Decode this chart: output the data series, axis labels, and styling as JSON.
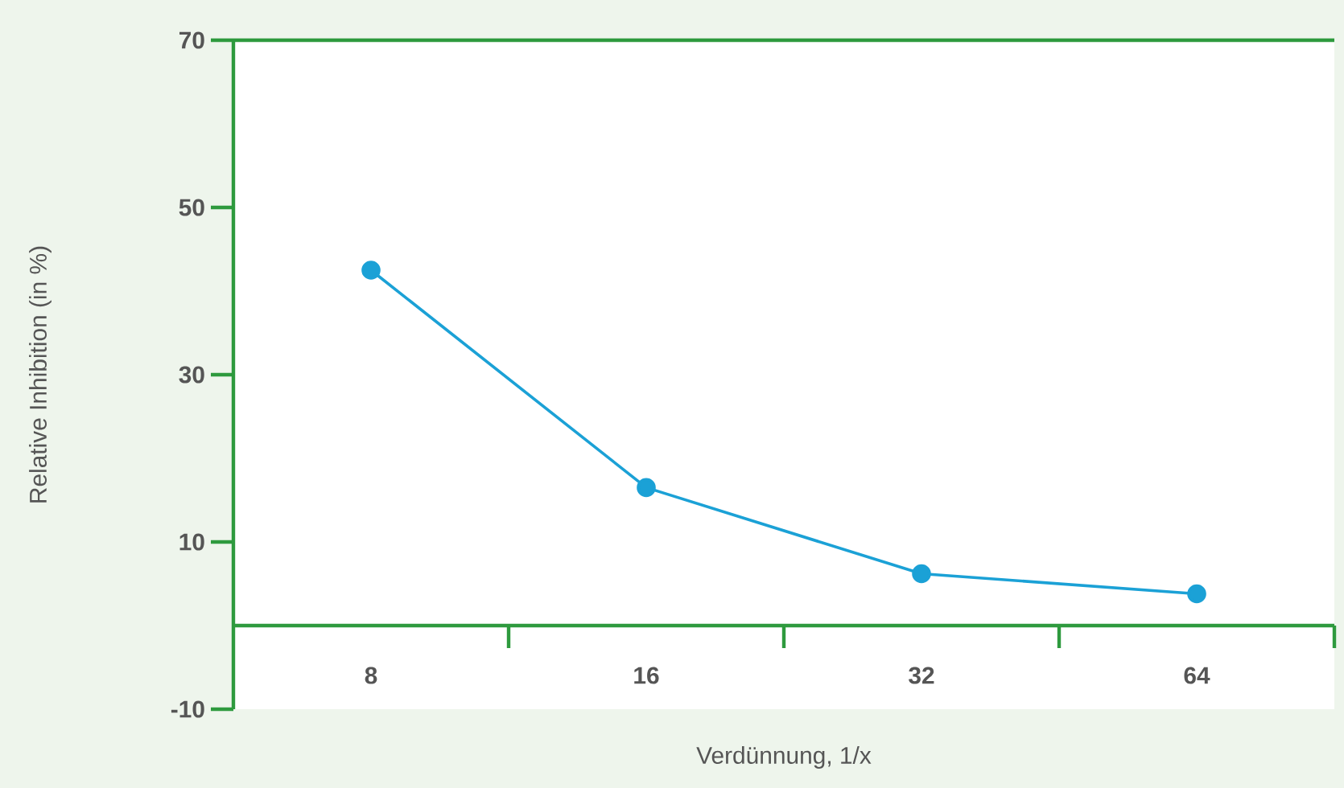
{
  "chart_data": {
    "type": "line",
    "xlabel": "Verdünnung, 1/x",
    "ylabel": "Relative Inhibition (in %)",
    "categories": [
      "8",
      "16",
      "32",
      "64"
    ],
    "values": [
      42.5,
      16.5,
      6.2,
      3.8
    ],
    "color": "#1ba1d6",
    "marker": "circle",
    "ref_lines": [
      {
        "axis": "y",
        "value": 0,
        "color": "#2e9a3e"
      }
    ],
    "ylim": [
      -10,
      70
    ],
    "yticks": [
      -10,
      10,
      30,
      50,
      70
    ]
  }
}
